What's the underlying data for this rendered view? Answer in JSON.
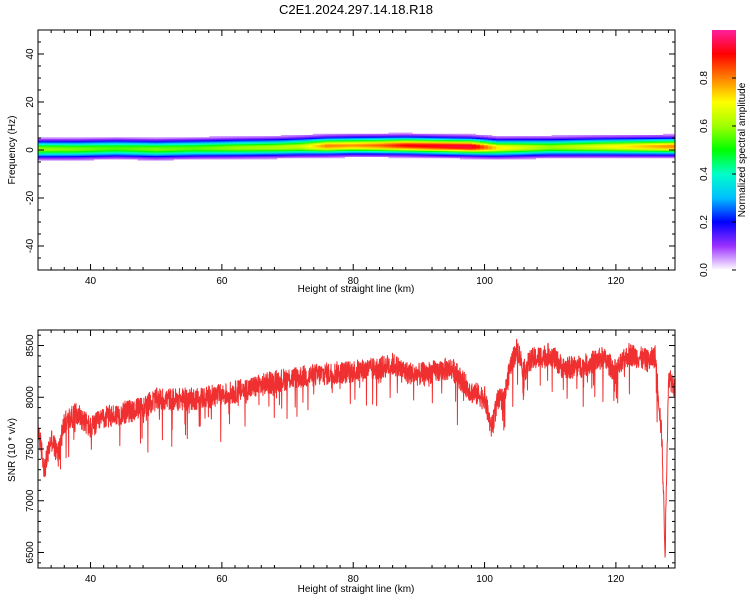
{
  "title": "C2E1.2024.297.14.18.R18",
  "chart_data": [
    {
      "type": "heatmap",
      "xlabel": "Height of straight line (km)",
      "ylabel": "Frequency (Hz)",
      "xlim": [
        32,
        129
      ],
      "ylim": [
        -50,
        50
      ],
      "xticks": [
        40,
        60,
        80,
        100,
        120
      ],
      "yticks": [
        -40,
        -20,
        0,
        20,
        40
      ],
      "ytick_labels": [
        "-40",
        "-20",
        "0",
        "20",
        "40"
      ],
      "colorbar": {
        "label": "Normalized spectral amplitude",
        "range": [
          0,
          1
        ],
        "ticks": [
          "0.0",
          "0.2",
          "0.4",
          "0.6",
          "0.8"
        ],
        "tick_values": [
          0.0,
          0.2,
          0.4,
          0.6,
          0.8
        ],
        "colormap": [
          "#ffffff",
          "#9b30ff",
          "#0000ff",
          "#00bfff",
          "#00ffc8",
          "#00ff00",
          "#a0ff00",
          "#ffff00",
          "#ff8000",
          "#ff0000",
          "#ff1f9f"
        ]
      },
      "ridge_center_hz": [
        0.5,
        0.5,
        0.8,
        0.5,
        0.8,
        1,
        1.2,
        1.5,
        1.8,
        2,
        2,
        2,
        1.8,
        1.5,
        1,
        1.3,
        1.5,
        1.6
      ],
      "ridge_peak_amplitude": [
        0.6,
        0.58,
        0.55,
        0.58,
        0.56,
        0.6,
        0.62,
        0.65,
        0.8,
        0.78,
        0.82,
        0.9,
        0.92,
        0.95,
        0.72,
        0.6,
        0.68,
        0.8
      ],
      "ridge_x_km": [
        32,
        38,
        44,
        50,
        56,
        62,
        68,
        72,
        76,
        80,
        84,
        88,
        92,
        98,
        102,
        110,
        118,
        129
      ],
      "grid": false
    },
    {
      "type": "line",
      "xlabel": "Height of straight line (km)",
      "ylabel": "SNR (10 * v/v)",
      "xlim": [
        32,
        129
      ],
      "ylim": [
        6350,
        8650
      ],
      "xticks": [
        40,
        60,
        80,
        100,
        120
      ],
      "yticks": [
        6500,
        7000,
        7500,
        8000,
        8500
      ],
      "series": [
        {
          "color": "#f03030",
          "x": [
            32,
            33,
            34,
            35,
            36,
            38,
            40,
            42,
            45,
            48,
            50,
            55,
            60,
            65,
            68,
            70,
            75,
            80,
            84,
            86,
            88,
            90,
            95,
            98,
            100,
            101,
            102,
            103,
            104,
            105,
            106,
            107,
            108,
            110,
            112,
            115,
            118,
            120,
            122,
            125,
            126,
            127,
            127.5,
            128,
            129
          ],
          "y": [
            7700,
            7300,
            7600,
            7450,
            7750,
            7850,
            7700,
            7800,
            7850,
            7900,
            7980,
            7980,
            8020,
            8100,
            8150,
            8180,
            8220,
            8250,
            8280,
            8320,
            8240,
            8220,
            8280,
            8050,
            8000,
            7700,
            7960,
            8000,
            8320,
            8480,
            8250,
            8360,
            8380,
            8420,
            8280,
            8300,
            8380,
            8250,
            8420,
            8350,
            8400,
            7600,
            6500,
            8200,
            8100
          ]
        }
      ],
      "grid": false
    }
  ]
}
